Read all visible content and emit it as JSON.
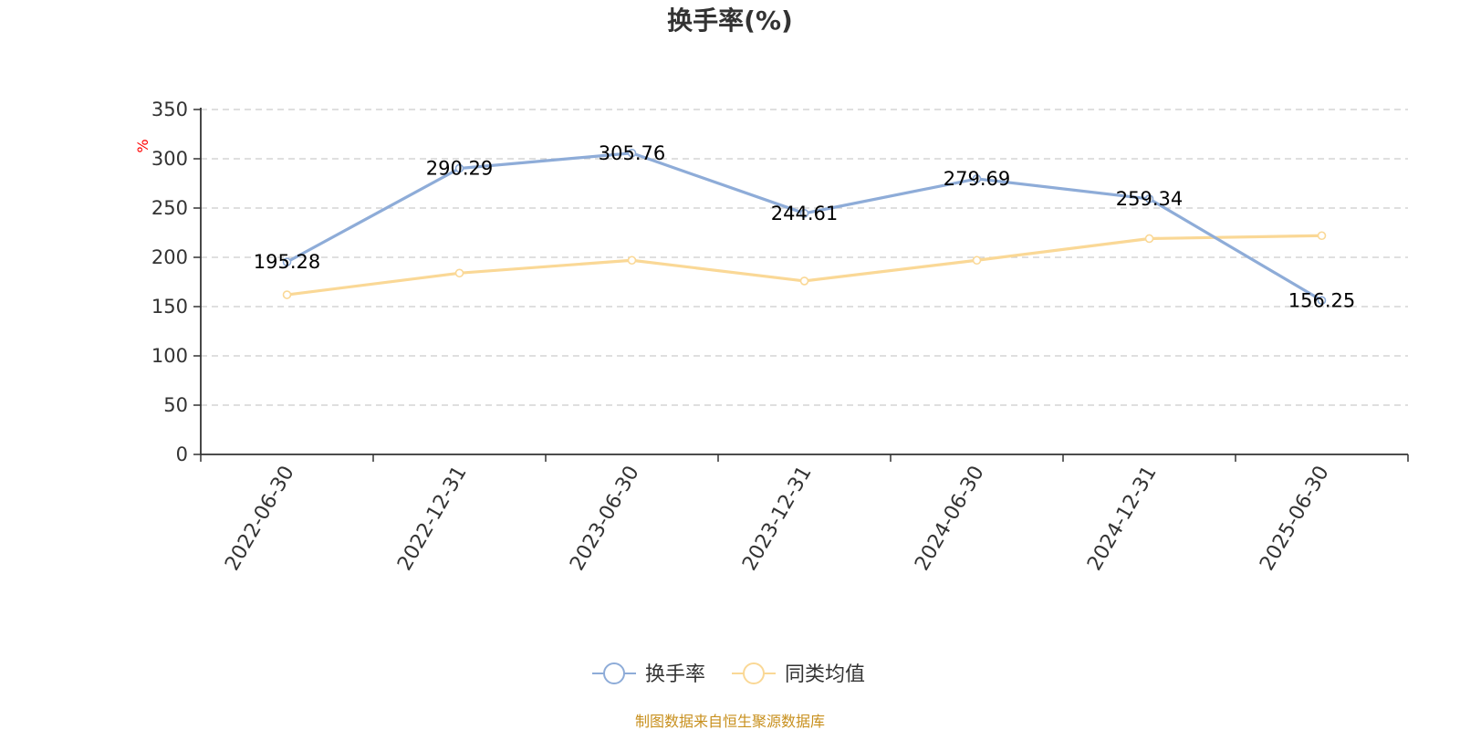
{
  "chart_data": {
    "type": "line",
    "title": "换手率(%)",
    "ylabel": "%",
    "xlabel": "",
    "ylim": [
      0,
      350
    ],
    "yticks": [
      0,
      50,
      100,
      150,
      200,
      250,
      300,
      350
    ],
    "grid": true,
    "legend_position": "bottom-center",
    "categories": [
      "2022-06-30",
      "2022-12-31",
      "2023-06-30",
      "2023-12-31",
      "2024-06-30",
      "2024-12-31",
      "2025-06-30"
    ],
    "series": [
      {
        "name": "换手率",
        "color": "#8eacd8",
        "values": [
          195.28,
          290.29,
          305.76,
          244.61,
          279.69,
          259.34,
          156.25
        ],
        "labels": [
          "195.28",
          "290.29",
          "305.76",
          "244.61",
          "279.69",
          "259.34",
          "156.25"
        ]
      },
      {
        "name": "同类均值",
        "color": "#fad896",
        "values": [
          162,
          184,
          197,
          176,
          197,
          219,
          222
        ]
      }
    ],
    "source": "制图数据来自恒生聚源数据库"
  }
}
